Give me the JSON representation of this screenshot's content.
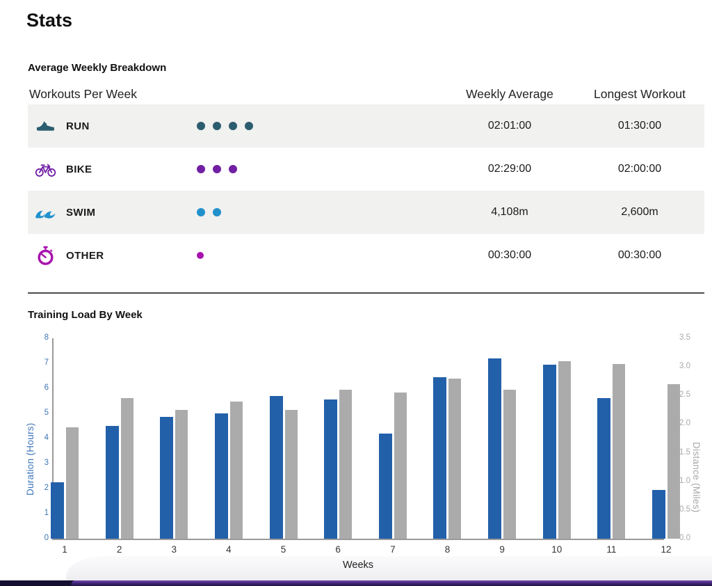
{
  "page": {
    "title": "Stats"
  },
  "breakdown": {
    "heading": "Average Weekly Breakdown",
    "col_workouts": "Workouts Per Week",
    "col_weekly_avg": "Weekly Average",
    "col_longest": "Longest Workout",
    "rows": [
      {
        "id": "run",
        "label": "RUN",
        "icon": "run-shoe-icon",
        "color": "#2b5d6e",
        "dots": 4,
        "dot_size": 12,
        "weekly_average": "02:01:00",
        "longest_workout": "01:30:00"
      },
      {
        "id": "bike",
        "label": "BIKE",
        "icon": "bike-icon",
        "color": "#7120a4",
        "dots": 3,
        "dot_size": 12,
        "weekly_average": "02:29:00",
        "longest_workout": "02:00:00"
      },
      {
        "id": "swim",
        "label": "SWIM",
        "icon": "swim-wave-icon",
        "color": "#2191cc",
        "dots": 2,
        "dot_size": 12,
        "weekly_average": "4,108m",
        "longest_workout": "2,600m"
      },
      {
        "id": "other",
        "label": "OTHER",
        "icon": "stopwatch-icon",
        "color": "#a712ad",
        "dots": 1,
        "dot_size": 10,
        "weekly_average": "00:30:00",
        "longest_workout": "00:30:00"
      }
    ]
  },
  "chart_data": {
    "type": "bar",
    "title": "Training Load By Week",
    "xlabel": "Weeks",
    "categories": [
      "1",
      "2",
      "3",
      "4",
      "5",
      "6",
      "7",
      "8",
      "9",
      "10",
      "11",
      "12"
    ],
    "series": [
      {
        "name": "Duration (Hours)",
        "axis": "left",
        "color": "#2260aa",
        "values": [
          2.25,
          4.5,
          4.85,
          5.0,
          5.7,
          5.55,
          4.2,
          6.45,
          7.2,
          6.95,
          5.6,
          1.95
        ]
      },
      {
        "name": "Distance (Miles)",
        "axis": "right",
        "color": "#ababab",
        "values": [
          1.95,
          2.45,
          2.25,
          2.4,
          2.25,
          2.6,
          2.55,
          2.8,
          2.6,
          3.1,
          3.05,
          2.7
        ]
      }
    ],
    "left_axis": {
      "label": "Duration (Hours)",
      "min": 0,
      "max": 8,
      "ticks": [
        0,
        1,
        2,
        3,
        4,
        5,
        6,
        7,
        8
      ],
      "color": "#3d74b8"
    },
    "right_axis": {
      "label": "Distance (Miles)",
      "min": 0,
      "max": 3.5,
      "ticks": [
        0.0,
        0.5,
        1.0,
        1.5,
        2.0,
        2.5,
        3.0,
        3.5
      ],
      "color": "#a9a9a9"
    },
    "grid": false,
    "legend": "none"
  }
}
